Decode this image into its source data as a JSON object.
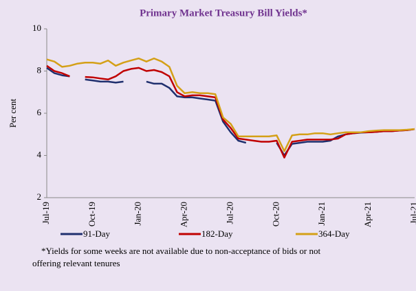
{
  "chart_data": {
    "type": "line",
    "title": "Primary Market Treasury Bill Yields*",
    "y_label": "Per cent",
    "note": [
      "*Yields for some weeks are not available due to non-acceptance of bids or not",
      "offering relevant tenures"
    ],
    "categories": [
      "Jul-19",
      null,
      null,
      null,
      null,
      null,
      "Oct-19",
      null,
      null,
      null,
      null,
      null,
      "Jan-20",
      null,
      null,
      null,
      null,
      null,
      "Apr-20",
      null,
      null,
      null,
      null,
      null,
      "Jul-20",
      null,
      null,
      null,
      null,
      null,
      "Oct-20",
      null,
      null,
      null,
      null,
      null,
      "Jan-21",
      null,
      null,
      null,
      null,
      null,
      "Apr-21",
      null,
      null,
      null,
      null,
      null,
      "Jul-21"
    ],
    "ylim": [
      2,
      10
    ],
    "yticks": [
      2,
      4,
      6,
      8,
      10
    ],
    "series": [
      {
        "name": "91-Day",
        "color": "#1f2f6e",
        "values": [
          8.15,
          7.9,
          7.8,
          7.75,
          null,
          7.6,
          7.55,
          7.5,
          7.5,
          7.45,
          7.5,
          null,
          null,
          7.5,
          7.4,
          7.4,
          7.2,
          6.8,
          6.75,
          6.75,
          6.7,
          6.65,
          6.6,
          5.6,
          5.1,
          4.7,
          4.6,
          null,
          null,
          null,
          4.6,
          4.0,
          4.55,
          4.6,
          4.65,
          4.65,
          4.65,
          4.7,
          4.9,
          5.0,
          5.05,
          5.08,
          5.1,
          5.12,
          5.15,
          5.15,
          5.18,
          5.2,
          5.25
        ]
      },
      {
        "name": "182-Day",
        "color": "#c00000",
        "values": [
          8.25,
          8.0,
          7.9,
          7.75,
          null,
          7.72,
          7.7,
          7.65,
          7.6,
          7.75,
          8.0,
          8.1,
          8.15,
          8.0,
          8.05,
          7.95,
          7.75,
          7.0,
          6.8,
          6.85,
          6.85,
          6.8,
          6.75,
          5.7,
          5.3,
          4.8,
          4.75,
          4.7,
          4.65,
          4.65,
          4.7,
          3.9,
          4.65,
          4.7,
          4.75,
          4.75,
          4.75,
          4.75,
          4.8,
          5.0,
          5.05,
          5.1,
          5.1,
          5.12,
          5.15,
          5.15,
          5.18,
          5.2,
          5.25
        ]
      },
      {
        "name": "364-Day",
        "color": "#d4a017",
        "values": [
          8.55,
          8.45,
          8.2,
          8.25,
          8.35,
          8.4,
          8.4,
          8.35,
          8.5,
          8.25,
          8.4,
          8.5,
          8.6,
          8.45,
          8.6,
          8.45,
          8.2,
          7.3,
          6.95,
          7.0,
          6.95,
          6.95,
          6.9,
          5.8,
          5.5,
          4.9,
          4.9,
          4.9,
          4.9,
          4.9,
          4.95,
          4.2,
          4.95,
          5.0,
          5.0,
          5.05,
          5.05,
          5.0,
          5.05,
          5.1,
          5.1,
          5.1,
          5.15,
          5.18,
          5.2,
          5.2,
          5.2,
          5.22,
          5.25
        ]
      }
    ]
  }
}
